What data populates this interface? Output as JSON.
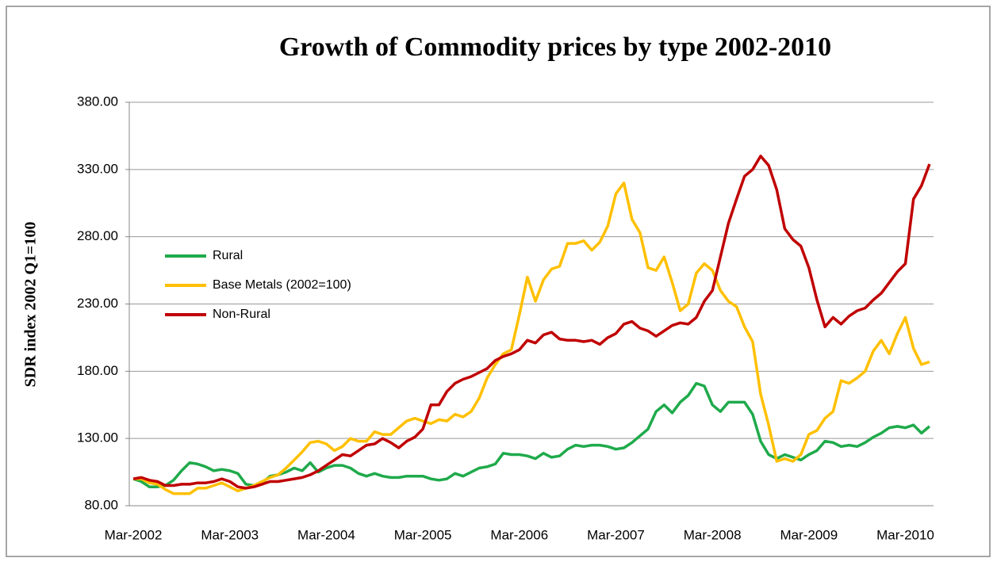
{
  "chart_data": {
    "type": "line",
    "title": "Growth of Commodity prices by type 2002-2010",
    "y_label": "SDR index 2002 Q1=100",
    "categories": [
      "Mar-2002",
      null,
      null,
      null,
      null,
      null,
      null,
      null,
      null,
      null,
      null,
      null,
      "Mar-2003",
      null,
      null,
      null,
      null,
      null,
      null,
      null,
      null,
      null,
      null,
      null,
      "Mar-2004",
      null,
      null,
      null,
      null,
      null,
      null,
      null,
      null,
      null,
      null,
      null,
      "Mar-2005",
      null,
      null,
      null,
      null,
      null,
      null,
      null,
      null,
      null,
      null,
      null,
      "Mar-2006",
      null,
      null,
      null,
      null,
      null,
      null,
      null,
      null,
      null,
      null,
      null,
      "Mar-2007",
      null,
      null,
      null,
      null,
      null,
      null,
      null,
      null,
      null,
      null,
      null,
      "Mar-2008",
      null,
      null,
      null,
      null,
      null,
      null,
      null,
      null,
      null,
      null,
      null,
      "Mar-2009",
      null,
      null,
      null,
      null,
      null,
      null,
      null,
      null,
      null,
      null,
      null,
      "Mar-2010",
      null,
      null,
      null
    ],
    "series": [
      {
        "name": "Rural",
        "color": "#1faa4b",
        "values": [
          100,
          98,
          94,
          94,
          95,
          99,
          106,
          112,
          111,
          109,
          106,
          107,
          106,
          104,
          96,
          95,
          97,
          102,
          103,
          105,
          108,
          106,
          112,
          105,
          108,
          110,
          110,
          108,
          104,
          102,
          104,
          102,
          101,
          101,
          102,
          102,
          102,
          100,
          99,
          100,
          104,
          102,
          105,
          108,
          109,
          111,
          119,
          118,
          118,
          117,
          115,
          119,
          116,
          117,
          122,
          125,
          124,
          125,
          125,
          124,
          122,
          123,
          127,
          132,
          137,
          150,
          155,
          149,
          157,
          162,
          171,
          169,
          155,
          150,
          157,
          157,
          157,
          148,
          128,
          118,
          115,
          118,
          116,
          114,
          118,
          121,
          128,
          127,
          124,
          125,
          124,
          127,
          131,
          134,
          138,
          139,
          138,
          140,
          134,
          139
        ]
      },
      {
        "name": "Base Metals (2002=100)",
        "color": "#ffc000",
        "values": [
          100,
          100,
          97,
          96,
          92,
          89,
          89,
          89,
          93,
          93,
          95,
          97,
          94,
          91,
          93,
          95,
          98,
          101,
          103,
          108,
          114,
          120,
          127,
          128,
          126,
          121,
          124,
          130,
          128,
          128,
          135,
          133,
          133,
          138,
          143,
          145,
          143,
          141,
          144,
          143,
          148,
          146,
          150,
          160,
          175,
          185,
          193,
          196,
          222,
          250,
          232,
          248,
          256,
          258,
          275,
          275,
          277,
          270,
          276,
          288,
          312,
          320,
          293,
          283,
          257,
          255,
          265,
          246,
          225,
          230,
          253,
          260,
          255,
          240,
          232,
          228,
          213,
          202,
          163,
          140,
          113,
          115,
          113,
          118,
          133,
          136,
          145,
          150,
          173,
          171,
          175,
          180,
          195,
          203,
          193,
          208,
          220,
          197,
          185,
          187
        ]
      },
      {
        "name": "Non-Rural",
        "color": "#c00000",
        "values": [
          100,
          101,
          99,
          98,
          95,
          95,
          96,
          96,
          97,
          97,
          98,
          100,
          98,
          94,
          93,
          94,
          96,
          98,
          98,
          99,
          100,
          101,
          103,
          106,
          110,
          114,
          118,
          117,
          121,
          125,
          126,
          130,
          127,
          123,
          128,
          131,
          137,
          155,
          155,
          165,
          171,
          174,
          176,
          179,
          182,
          188,
          191,
          193,
          196,
          203,
          201,
          207,
          209,
          204,
          203,
          203,
          202,
          203,
          200,
          205,
          208,
          215,
          217,
          212,
          210,
          206,
          210,
          214,
          216,
          215,
          220,
          232,
          240,
          265,
          290,
          308,
          325,
          330,
          340,
          333,
          315,
          286,
          278,
          273,
          257,
          233,
          213,
          220,
          215,
          221,
          225,
          227,
          233,
          238,
          246,
          254,
          260,
          308,
          318,
          334
        ]
      }
    ],
    "ylim": [
      80,
      380
    ],
    "yticks": [
      {
        "value": 80,
        "label": "80.00"
      },
      {
        "value": 130,
        "label": "130.00"
      },
      {
        "value": 180,
        "label": "180.00"
      },
      {
        "value": 230,
        "label": "230.00"
      },
      {
        "value": 280,
        "label": "280.00"
      },
      {
        "value": 330,
        "label": "330.00"
      },
      {
        "value": 380,
        "label": "380.00"
      }
    ],
    "grid": true,
    "legend": "left"
  }
}
